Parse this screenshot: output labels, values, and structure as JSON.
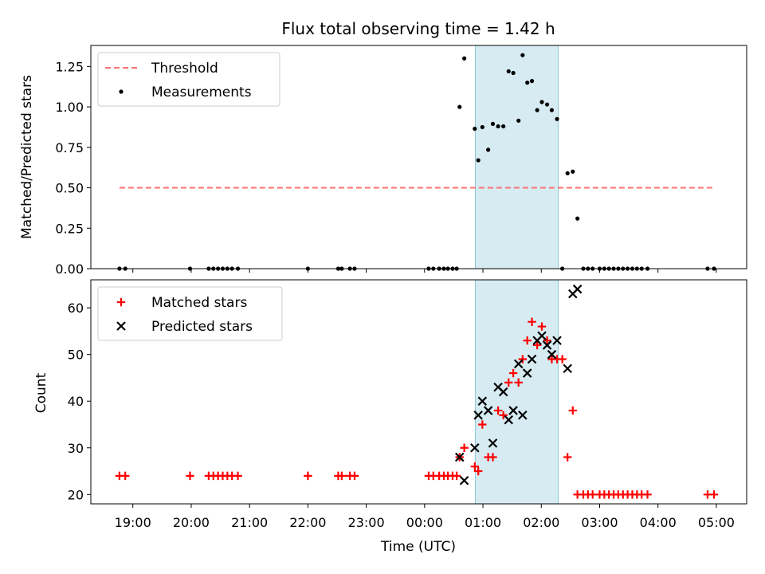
{
  "chart_data": [
    {
      "type": "scatter",
      "title": "Flux total observing time = 1.42 h",
      "xlabel": "",
      "ylabel": "Matched/Predicted stars",
      "ylim": [
        0,
        1.38
      ],
      "xlim": [
        -0.72,
        10.52
      ],
      "x_unit": "hours since 19:00 UTC",
      "yticks": [
        0.0,
        0.25,
        0.5,
        0.75,
        1.0,
        1.25
      ],
      "ytick_labels": [
        "0.00",
        "0.25",
        "0.50",
        "0.75",
        "1.00",
        "1.25"
      ],
      "highlight_span": [
        5.87,
        7.29
      ],
      "threshold": {
        "name": "Threshold",
        "y": 0.5,
        "x_range": [
          -0.23,
          9.95
        ],
        "color": "#ff7070"
      },
      "legend": [
        "Threshold",
        "Measurements"
      ],
      "legend_position": "upper left",
      "series": [
        {
          "name": "Measurements",
          "marker": "dot",
          "color": "#000000",
          "points": [
            [
              -0.23,
              0
            ],
            [
              -0.13,
              0
            ],
            [
              0.98,
              0
            ],
            [
              1.3,
              0
            ],
            [
              1.38,
              0
            ],
            [
              1.46,
              0
            ],
            [
              1.54,
              0
            ],
            [
              1.62,
              0
            ],
            [
              1.7,
              0
            ],
            [
              1.8,
              0
            ],
            [
              3.0,
              0
            ],
            [
              3.52,
              0
            ],
            [
              3.58,
              0
            ],
            [
              3.72,
              0
            ],
            [
              3.8,
              0
            ],
            [
              5.07,
              0
            ],
            [
              5.15,
              0
            ],
            [
              5.25,
              0
            ],
            [
              5.33,
              0
            ],
            [
              5.4,
              0
            ],
            [
              5.48,
              0
            ],
            [
              5.55,
              0
            ],
            [
              5.6,
              1.0
            ],
            [
              5.68,
              1.3
            ],
            [
              5.86,
              0.865
            ],
            [
              5.92,
              0.67
            ],
            [
              5.99,
              0.875
            ],
            [
              6.09,
              0.735
            ],
            [
              6.17,
              0.895
            ],
            [
              6.26,
              0.88
            ],
            [
              6.35,
              0.88
            ],
            [
              6.44,
              1.22
            ],
            [
              6.52,
              1.21
            ],
            [
              6.61,
              0.915
            ],
            [
              6.68,
              1.32
            ],
            [
              6.76,
              1.15
            ],
            [
              6.84,
              1.16
            ],
            [
              6.93,
              0.98
            ],
            [
              7.01,
              1.03
            ],
            [
              7.1,
              1.015
            ],
            [
              7.18,
              0.98
            ],
            [
              7.27,
              0.925
            ],
            [
              7.36,
              0
            ],
            [
              7.45,
              0.59
            ],
            [
              7.54,
              0.6
            ],
            [
              7.62,
              0.31
            ],
            [
              7.72,
              0
            ],
            [
              7.8,
              0
            ],
            [
              7.88,
              0
            ],
            [
              8.0,
              0
            ],
            [
              8.08,
              0
            ],
            [
              8.16,
              0
            ],
            [
              8.24,
              0
            ],
            [
              8.32,
              0
            ],
            [
              8.4,
              0
            ],
            [
              8.48,
              0
            ],
            [
              8.56,
              0
            ],
            [
              8.64,
              0
            ],
            [
              8.72,
              0
            ],
            [
              8.82,
              0
            ],
            [
              9.85,
              0
            ],
            [
              9.96,
              0
            ]
          ]
        }
      ]
    },
    {
      "type": "scatter",
      "title": "",
      "xlabel": "Time (UTC)",
      "ylabel": "Count",
      "ylim": [
        18,
        66
      ],
      "xlim": [
        -0.72,
        10.52
      ],
      "xticks": [
        0,
        1,
        2,
        3,
        4,
        5,
        6,
        7,
        8,
        9,
        10
      ],
      "xtick_labels": [
        "19:00",
        "20:00",
        "21:00",
        "22:00",
        "23:00",
        "00:00",
        "01:00",
        "02:00",
        "03:00",
        "04:00",
        "05:00"
      ],
      "yticks": [
        20,
        30,
        40,
        50,
        60
      ],
      "ytick_labels": [
        "20",
        "30",
        "40",
        "50",
        "60"
      ],
      "highlight_span": [
        5.87,
        7.29
      ],
      "legend": [
        "Matched stars",
        "Predicted stars"
      ],
      "legend_position": "upper left",
      "series": [
        {
          "name": "Matched stars",
          "marker": "plus",
          "color": "#ff0000",
          "points": [
            [
              -0.23,
              24
            ],
            [
              -0.13,
              24
            ],
            [
              0.98,
              24
            ],
            [
              1.3,
              24
            ],
            [
              1.38,
              24
            ],
            [
              1.46,
              24
            ],
            [
              1.54,
              24
            ],
            [
              1.62,
              24
            ],
            [
              1.7,
              24
            ],
            [
              1.8,
              24
            ],
            [
              3.0,
              24
            ],
            [
              3.52,
              24
            ],
            [
              3.58,
              24
            ],
            [
              3.72,
              24
            ],
            [
              3.8,
              24
            ],
            [
              5.07,
              24
            ],
            [
              5.15,
              24
            ],
            [
              5.25,
              24
            ],
            [
              5.33,
              24
            ],
            [
              5.4,
              24
            ],
            [
              5.48,
              24
            ],
            [
              5.55,
              24
            ],
            [
              5.6,
              28
            ],
            [
              5.68,
              30
            ],
            [
              5.86,
              26
            ],
            [
              5.92,
              25
            ],
            [
              5.99,
              35
            ],
            [
              6.09,
              28
            ],
            [
              6.17,
              28
            ],
            [
              6.26,
              38
            ],
            [
              6.35,
              37
            ],
            [
              6.44,
              44
            ],
            [
              6.52,
              46
            ],
            [
              6.61,
              44
            ],
            [
              6.68,
              49
            ],
            [
              6.76,
              53
            ],
            [
              6.84,
              57
            ],
            [
              6.93,
              52
            ],
            [
              7.01,
              56
            ],
            [
              7.1,
              53
            ],
            [
              7.18,
              49
            ],
            [
              7.27,
              49
            ],
            [
              7.36,
              49
            ],
            [
              7.45,
              28
            ],
            [
              7.54,
              38
            ],
            [
              7.62,
              20
            ],
            [
              7.72,
              20
            ],
            [
              7.8,
              20
            ],
            [
              7.88,
              20
            ],
            [
              8.0,
              20
            ],
            [
              8.08,
              20
            ],
            [
              8.16,
              20
            ],
            [
              8.24,
              20
            ],
            [
              8.32,
              20
            ],
            [
              8.4,
              20
            ],
            [
              8.48,
              20
            ],
            [
              8.56,
              20
            ],
            [
              8.64,
              20
            ],
            [
              8.72,
              20
            ],
            [
              8.82,
              20
            ],
            [
              9.85,
              20
            ],
            [
              9.96,
              20
            ]
          ]
        },
        {
          "name": "Predicted stars",
          "marker": "x",
          "color": "#000000",
          "points": [
            [
              5.6,
              28
            ],
            [
              5.68,
              23
            ],
            [
              5.86,
              30
            ],
            [
              5.92,
              37
            ],
            [
              5.99,
              40
            ],
            [
              6.09,
              38
            ],
            [
              6.17,
              31
            ],
            [
              6.26,
              43
            ],
            [
              6.35,
              42
            ],
            [
              6.44,
              36
            ],
            [
              6.52,
              38
            ],
            [
              6.61,
              48
            ],
            [
              6.68,
              37
            ],
            [
              6.76,
              46
            ],
            [
              6.84,
              49
            ],
            [
              6.93,
              53
            ],
            [
              7.01,
              54
            ],
            [
              7.1,
              52
            ],
            [
              7.18,
              50
            ],
            [
              7.27,
              53
            ],
            [
              7.45,
              47
            ],
            [
              7.54,
              63
            ],
            [
              7.62,
              64
            ]
          ]
        }
      ]
    }
  ]
}
